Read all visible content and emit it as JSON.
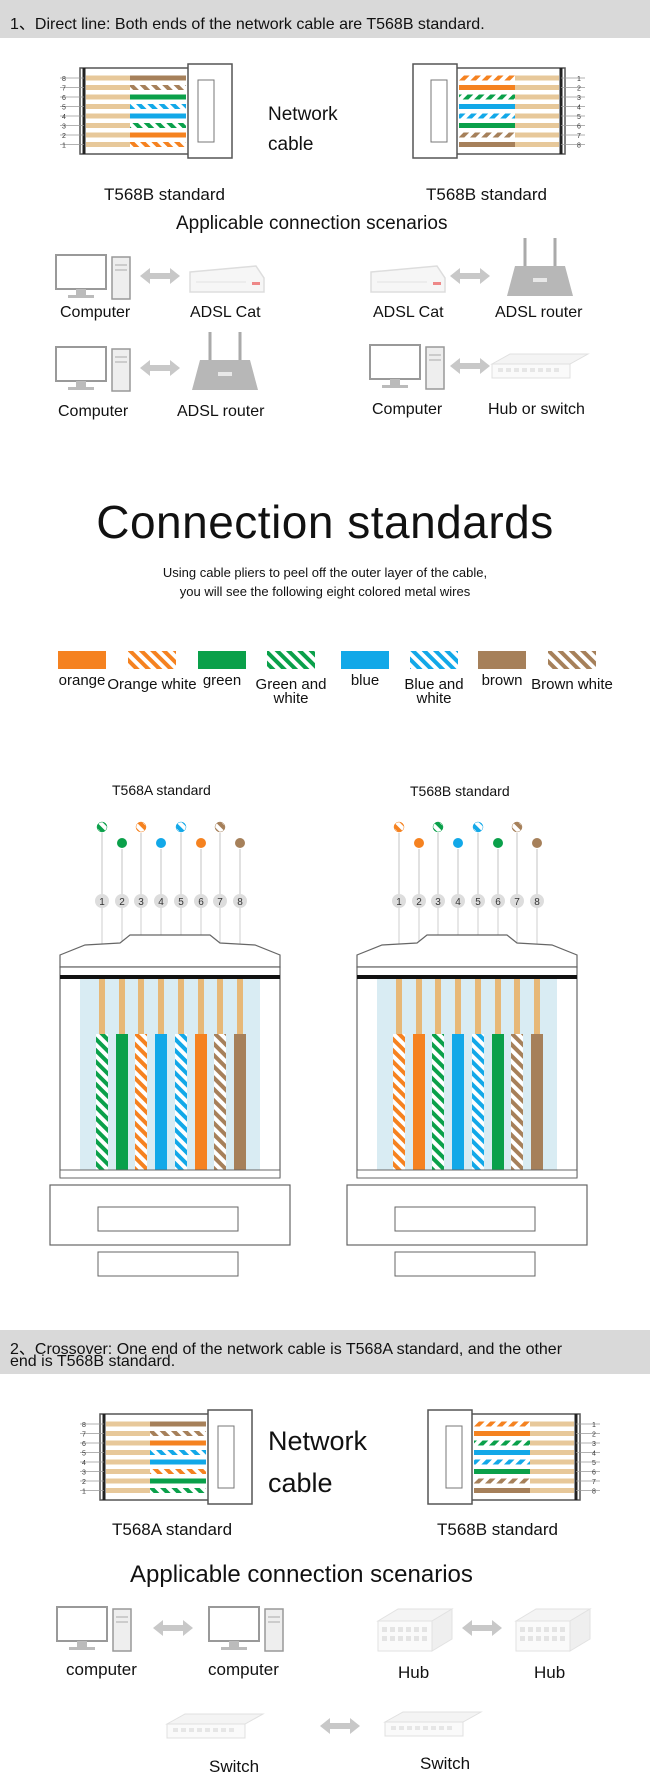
{
  "section1": {
    "title": "1、Direct line: Both ends of the network cable are T568B standard.",
    "network_cable": [
      "Network",
      "cable"
    ],
    "left_standard": "T568B standard",
    "right_standard": "T568B standard",
    "scenarios_title": "Applicable connection scenarios",
    "scenarios": [
      {
        "left": "Computer",
        "right": "ADSL Cat"
      },
      {
        "left": "ADSL Cat",
        "right": "ADSL router"
      },
      {
        "left": "Computer",
        "right": "ADSL router"
      },
      {
        "left": "Computer",
        "right": "Hub or switch"
      }
    ],
    "pin_numbers": [
      "8",
      "7",
      "6",
      "5",
      "4",
      "3",
      "2",
      "1"
    ],
    "pin_numbers_right": [
      "1",
      "2",
      "3",
      "4",
      "5",
      "6",
      "7",
      "8"
    ]
  },
  "standards": {
    "heading": "Connection standards",
    "desc_line1": "Using cable pliers to peel off the outer layer of the cable,",
    "desc_line2": "you will see the following eight colored metal wires",
    "swatches": [
      {
        "label": "orange",
        "color": "#f58220",
        "striped": false
      },
      {
        "label": "Orange white",
        "color": "#f58220",
        "striped": true
      },
      {
        "label": "green",
        "color": "#0aa04a",
        "striped": false
      },
      {
        "label": "Green and white",
        "color": "#0aa04a",
        "striped": true
      },
      {
        "label": "blue",
        "color": "#12a8e8",
        "striped": false
      },
      {
        "label": "Blue and white",
        "color": "#12a8e8",
        "striped": true
      },
      {
        "label": "brown",
        "color": "#a6805a",
        "striped": false
      },
      {
        "label": "Brown white",
        "color": "#a6805a",
        "striped": true
      }
    ]
  },
  "pinouts": {
    "t568a_title": "T568A standard",
    "t568b_title": "T568B standard",
    "pins": [
      "1",
      "2",
      "3",
      "4",
      "5",
      "6",
      "7",
      "8"
    ],
    "t568a_order": [
      "green-white",
      "green",
      "orange-white",
      "blue",
      "blue-white",
      "orange",
      "brown-white",
      "brown"
    ],
    "t568b_order": [
      "orange-white",
      "orange",
      "green-white",
      "blue",
      "blue-white",
      "green",
      "brown-white",
      "brown"
    ],
    "colors": {
      "orange": "#f58220",
      "green": "#0aa04a",
      "blue": "#12a8e8",
      "brown": "#a6805a"
    }
  },
  "section2": {
    "title_line1": "2、Crossover: One end of the network cable is T568A standard, and the other",
    "title_line2": "end is T568B standard.",
    "network_cable": [
      "Network",
      "cable"
    ],
    "left_standard": "T568A standard",
    "right_standard": "T568B standard",
    "scenarios_title": "Applicable connection scenarios",
    "scenarios": [
      {
        "left": "computer",
        "right": "computer"
      },
      {
        "left": "Hub",
        "right": "Hub"
      },
      {
        "left": "Switch",
        "right": "Switch"
      }
    ],
    "pin_numbers": [
      "8",
      "7",
      "6",
      "5",
      "4",
      "3",
      "2",
      "1"
    ],
    "pin_numbers_right": [
      "1",
      "2",
      "3",
      "4",
      "5",
      "6",
      "7",
      "8"
    ]
  }
}
